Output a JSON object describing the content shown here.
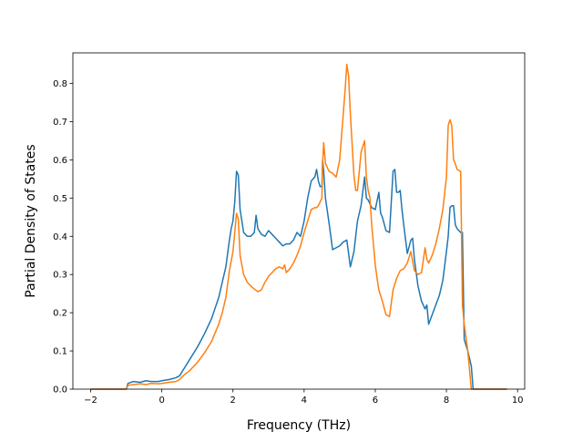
{
  "chart_data": {
    "type": "line",
    "title": "",
    "xlabel": "Frequency (THz)",
    "ylabel": "Partial Density of States",
    "xlim": [
      -2.5,
      10.2
    ],
    "ylim": [
      0.0,
      0.88
    ],
    "xticks": [
      -2,
      0,
      2,
      4,
      6,
      8,
      10
    ],
    "xtick_labels": [
      "−2",
      "0",
      "2",
      "4",
      "6",
      "8",
      "10"
    ],
    "yticks": [
      0.0,
      0.1,
      0.2,
      0.3,
      0.4,
      0.5,
      0.6,
      0.7,
      0.8
    ],
    "ytick_labels": [
      "0.0",
      "0.1",
      "0.2",
      "0.3",
      "0.4",
      "0.5",
      "0.6",
      "0.7",
      "0.8"
    ],
    "grid": false,
    "legend": false,
    "series": [
      {
        "color": "#1f77b4",
        "x": [
          -2.0,
          -1.0,
          -0.95,
          -0.8,
          -0.6,
          -0.45,
          -0.3,
          -0.1,
          0.0,
          0.2,
          0.4,
          0.5,
          0.6,
          0.8,
          1.0,
          1.2,
          1.4,
          1.6,
          1.7,
          1.8,
          1.9,
          1.95,
          2.0,
          2.05,
          2.1,
          2.15,
          2.2,
          2.3,
          2.4,
          2.5,
          2.6,
          2.65,
          2.7,
          2.8,
          2.9,
          3.0,
          3.1,
          3.2,
          3.3,
          3.4,
          3.5,
          3.6,
          3.7,
          3.8,
          3.9,
          4.0,
          4.1,
          4.2,
          4.3,
          4.35,
          4.4,
          4.45,
          4.5,
          4.52,
          4.55,
          4.6,
          4.7,
          4.8,
          4.9,
          5.0,
          5.1,
          5.2,
          5.3,
          5.4,
          5.45,
          5.5,
          5.6,
          5.7,
          5.75,
          5.8,
          5.9,
          6.0,
          6.1,
          6.15,
          6.2,
          6.3,
          6.4,
          6.5,
          6.55,
          6.6,
          6.65,
          6.7,
          6.75,
          6.8,
          6.9,
          7.0,
          7.05,
          7.1,
          7.2,
          7.3,
          7.4,
          7.45,
          7.5,
          7.6,
          7.7,
          7.8,
          7.9,
          8.0,
          8.05,
          8.1,
          8.15,
          8.2,
          8.25,
          8.3,
          8.4,
          8.45,
          8.5,
          8.6,
          8.7,
          8.75,
          8.8,
          9.0,
          9.7
        ],
        "y": [
          0.0,
          0.0,
          0.015,
          0.02,
          0.018,
          0.022,
          0.02,
          0.02,
          0.022,
          0.025,
          0.03,
          0.035,
          0.05,
          0.08,
          0.11,
          0.145,
          0.185,
          0.24,
          0.28,
          0.32,
          0.39,
          0.42,
          0.44,
          0.49,
          0.57,
          0.56,
          0.47,
          0.41,
          0.4,
          0.4,
          0.41,
          0.455,
          0.42,
          0.405,
          0.4,
          0.415,
          0.405,
          0.395,
          0.385,
          0.375,
          0.38,
          0.38,
          0.39,
          0.41,
          0.4,
          0.44,
          0.5,
          0.545,
          0.555,
          0.575,
          0.545,
          0.53,
          0.53,
          0.6,
          0.57,
          0.5,
          0.435,
          0.365,
          0.37,
          0.375,
          0.385,
          0.39,
          0.32,
          0.36,
          0.4,
          0.44,
          0.48,
          0.555,
          0.5,
          0.495,
          0.475,
          0.47,
          0.515,
          0.46,
          0.45,
          0.415,
          0.41,
          0.57,
          0.575,
          0.515,
          0.515,
          0.52,
          0.47,
          0.43,
          0.355,
          0.39,
          0.395,
          0.34,
          0.27,
          0.23,
          0.21,
          0.22,
          0.17,
          0.195,
          0.22,
          0.245,
          0.285,
          0.36,
          0.4,
          0.475,
          0.48,
          0.48,
          0.43,
          0.42,
          0.41,
          0.41,
          0.13,
          0.1,
          0.06,
          0.0,
          0.0,
          0.0,
          0.0
        ]
      },
      {
        "color": "#ff7f0e",
        "x": [
          -2.0,
          -1.0,
          -0.95,
          -0.8,
          -0.6,
          -0.45,
          -0.3,
          -0.1,
          0.0,
          0.2,
          0.4,
          0.5,
          0.6,
          0.8,
          1.0,
          1.2,
          1.4,
          1.6,
          1.7,
          1.8,
          1.9,
          1.95,
          2.0,
          2.05,
          2.1,
          2.15,
          2.2,
          2.3,
          2.4,
          2.5,
          2.6,
          2.7,
          2.8,
          2.9,
          3.0,
          3.1,
          3.2,
          3.3,
          3.4,
          3.45,
          3.5,
          3.6,
          3.7,
          3.8,
          3.9,
          4.0,
          4.1,
          4.2,
          4.3,
          4.35,
          4.4,
          4.45,
          4.5,
          4.52,
          4.55,
          4.6,
          4.7,
          4.8,
          4.9,
          5.0,
          5.05,
          5.1,
          5.15,
          5.2,
          5.25,
          5.3,
          5.4,
          5.45,
          5.5,
          5.6,
          5.7,
          5.75,
          5.8,
          5.85,
          5.9,
          6.0,
          6.05,
          6.1,
          6.2,
          6.3,
          6.4,
          6.5,
          6.6,
          6.7,
          6.8,
          6.9,
          7.0,
          7.1,
          7.2,
          7.3,
          7.4,
          7.45,
          7.5,
          7.6,
          7.7,
          7.8,
          7.9,
          8.0,
          8.05,
          8.1,
          8.15,
          8.2,
          8.25,
          8.3,
          8.4,
          8.45,
          8.5,
          8.6,
          8.7,
          8.75,
          8.8,
          9.0,
          9.7
        ],
        "y": [
          0.0,
          0.0,
          0.01,
          0.012,
          0.014,
          0.012,
          0.015,
          0.014,
          0.015,
          0.018,
          0.02,
          0.025,
          0.035,
          0.05,
          0.07,
          0.095,
          0.125,
          0.17,
          0.2,
          0.24,
          0.31,
          0.335,
          0.36,
          0.41,
          0.46,
          0.445,
          0.35,
          0.3,
          0.28,
          0.27,
          0.262,
          0.255,
          0.26,
          0.28,
          0.295,
          0.305,
          0.315,
          0.32,
          0.315,
          0.325,
          0.305,
          0.315,
          0.33,
          0.35,
          0.375,
          0.41,
          0.44,
          0.47,
          0.475,
          0.475,
          0.48,
          0.49,
          0.5,
          0.59,
          0.645,
          0.59,
          0.57,
          0.565,
          0.555,
          0.6,
          0.66,
          0.72,
          0.78,
          0.85,
          0.82,
          0.72,
          0.56,
          0.52,
          0.52,
          0.62,
          0.65,
          0.555,
          0.52,
          0.5,
          0.43,
          0.325,
          0.29,
          0.26,
          0.23,
          0.195,
          0.19,
          0.26,
          0.29,
          0.31,
          0.315,
          0.33,
          0.36,
          0.31,
          0.3,
          0.305,
          0.37,
          0.34,
          0.33,
          0.35,
          0.38,
          0.42,
          0.47,
          0.555,
          0.69,
          0.705,
          0.69,
          0.6,
          0.59,
          0.575,
          0.57,
          0.22,
          0.17,
          0.1,
          0.0,
          0.0,
          0.0,
          0.0,
          0.0
        ]
      }
    ]
  }
}
